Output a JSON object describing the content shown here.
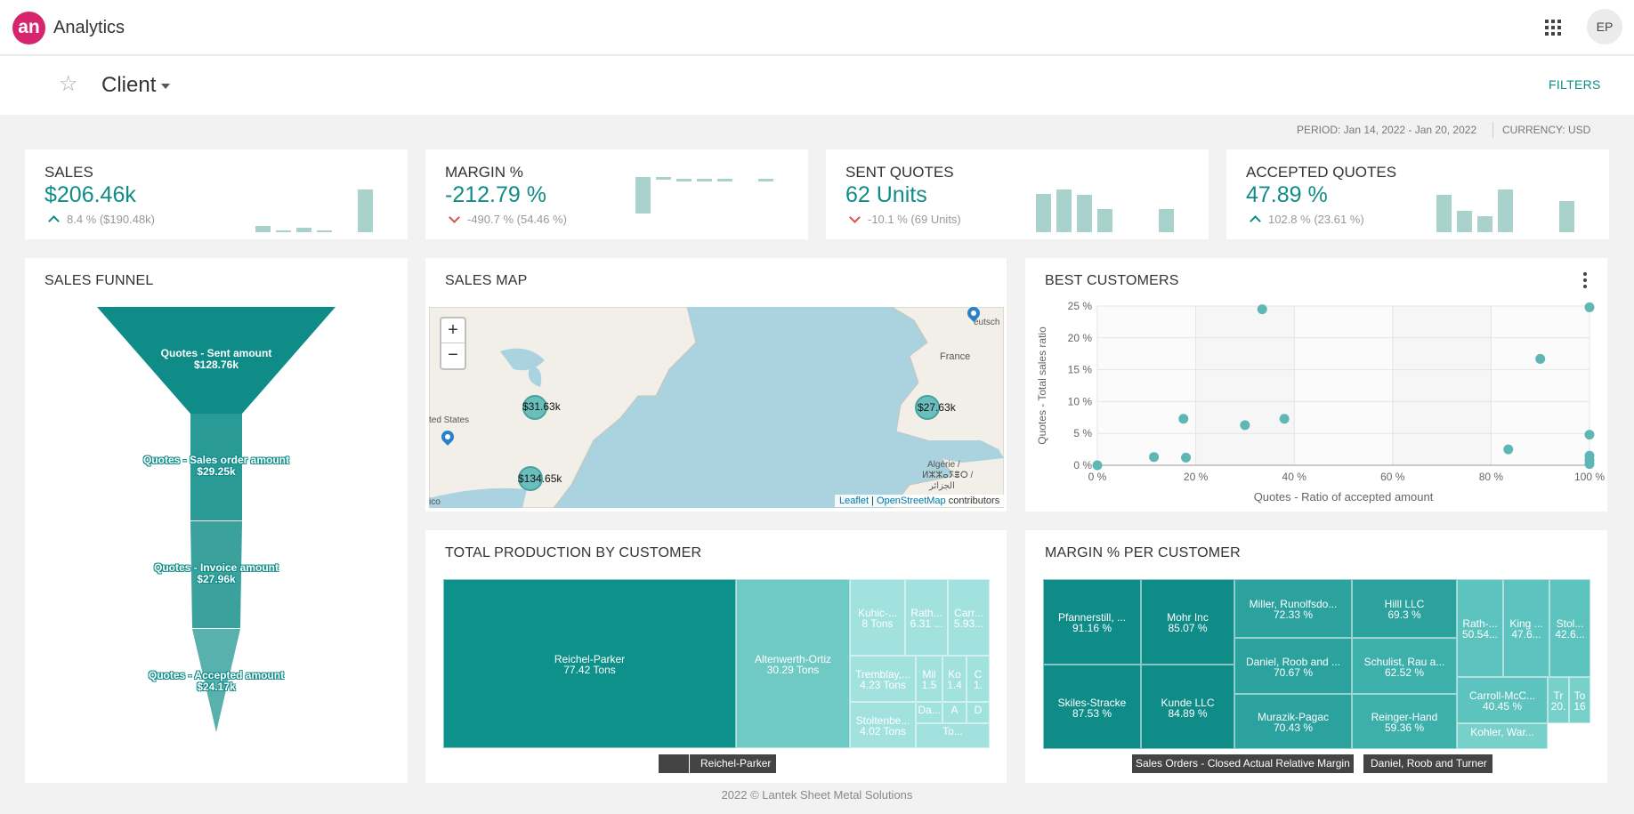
{
  "app": {
    "logo_text": "an",
    "name": "Analytics",
    "user_initials": "EP"
  },
  "subheader": {
    "title": "Client",
    "filters_label": "FILTERS"
  },
  "meta": {
    "period": "PERIOD: Jan 14, 2022 - Jan 20, 2022",
    "currency": "CURRENCY: USD"
  },
  "kpis": [
    {
      "title": "SALES",
      "value": "$206.46k",
      "trend_direction": "up",
      "trend": "8.4 % ($190.48k)",
      "spark_levels": [
        0,
        0.14,
        0.04,
        0.1,
        0.04,
        0,
        1
      ]
    },
    {
      "title": "MARGIN %",
      "value": "-212.79 %",
      "trend_direction": "down",
      "trend": "-490.7 % (54.46 %)",
      "spark_levels": [
        0.9,
        0.1,
        0.05,
        0,
        0,
        0.05
      ]
    },
    {
      "title": "SENT QUOTES",
      "value": "62 Units",
      "trend_direction": "down",
      "trend": "-10.1 % (69 Units)",
      "spark_levels": [
        0.9,
        1,
        0.87,
        0.55,
        0,
        0.55
      ]
    },
    {
      "title": "ACCEPTED QUOTES",
      "value": "47.89 %",
      "trend_direction": "up",
      "trend": "102.8 % (23.61 %)",
      "spark_levels": [
        0.87,
        0.5,
        0.37,
        1,
        0,
        0.72
      ]
    }
  ],
  "funnel": {
    "title": "SALES FUNNEL",
    "stages": [
      {
        "label": "Quotes - Sent amount",
        "value": "$128.76k"
      },
      {
        "label": "Quotes - Sales order amount",
        "value": "$29.25k"
      },
      {
        "label": "Quotes - Invoice amount",
        "value": "$27.96k"
      },
      {
        "label": "Quotes - Accepted amount",
        "value": "$24.17k"
      }
    ]
  },
  "sales_map": {
    "title": "SALES MAP",
    "zoom_in": "+",
    "zoom_out": "−",
    "clusters": [
      "$31.63k",
      "$27.63k",
      "$134.65k"
    ],
    "labels": [
      "France",
      "ted States",
      "eutsch",
      "Algérie /",
      "ⵍⵣⵣⴰⵢⴻⵔ /",
      "الجزائر",
      "ico"
    ],
    "attribution": {
      "leaflet": "Leaflet",
      "sep": " | ",
      "osm": "OpenStreetMap",
      "rest": " contributors"
    }
  },
  "best_customers": {
    "title": "BEST CUSTOMERS",
    "chart_data": {
      "type": "scatter",
      "xlabel": "Quotes - Ratio of accepted amount",
      "ylabel": "Quotes - Total sales ratio",
      "xlim": [
        0,
        100
      ],
      "ylim": [
        0,
        25
      ],
      "xticks": [
        "0 %",
        "20 %",
        "40 %",
        "60 %",
        "80 %",
        "100 %"
      ],
      "yticks": [
        "0 %",
        "5 %",
        "10 %",
        "15 %",
        "20 %",
        "25 %"
      ],
      "points": [
        {
          "x": 0,
          "y": 0
        },
        {
          "x": 11.5,
          "y": 1.3
        },
        {
          "x": 17.5,
          "y": 7.3
        },
        {
          "x": 18,
          "y": 1.2
        },
        {
          "x": 30,
          "y": 6.3
        },
        {
          "x": 33.5,
          "y": 24.5
        },
        {
          "x": 38,
          "y": 7.3
        },
        {
          "x": 83.5,
          "y": 2.5
        },
        {
          "x": 90,
          "y": 16.7
        },
        {
          "x": 100,
          "y": 24.8
        },
        {
          "x": 100,
          "y": 4.8
        },
        {
          "x": 100,
          "y": 1.5
        },
        {
          "x": 100,
          "y": 0.8
        },
        {
          "x": 100,
          "y": 0.2
        }
      ]
    }
  },
  "production": {
    "title": "TOTAL PRODUCTION BY CUSTOMER",
    "cells": [
      {
        "name": "Reichel-Parker",
        "value": "77.42 Tons"
      },
      {
        "name": "Altenwerth-Ortiz",
        "value": "30.29 Tons"
      },
      {
        "name": "Kuhic-...",
        "value": "8 Tons"
      },
      {
        "name": "Rath...",
        "value": "6.31 ..."
      },
      {
        "name": "Carr...",
        "value": "5.93..."
      },
      {
        "name": "Tremblay,...",
        "value": "4.23 Tons"
      },
      {
        "name": "Mil",
        "value": "1.5"
      },
      {
        "name": "Ko",
        "value": "1.4"
      },
      {
        "name": "C",
        "value": "1."
      },
      {
        "name": "Stoltenbe...",
        "value": "4.02 Tons"
      },
      {
        "name": "Da...",
        "value": ""
      },
      {
        "name": "A",
        "value": ""
      },
      {
        "name": "D",
        "value": ""
      },
      {
        "name": "To...",
        "value": ""
      }
    ],
    "breadcrumb": [
      "",
      "Reichel-Parker"
    ]
  },
  "margin": {
    "title": "MARGIN % PER CUSTOMER",
    "cells": [
      {
        "name": "Pfannerstill, ...",
        "value": "91.16 %"
      },
      {
        "name": "Skiles-Stracke",
        "value": "87.53 %"
      },
      {
        "name": "Mohr Inc",
        "value": "85.07 %"
      },
      {
        "name": "Kunde LLC",
        "value": "84.89 %"
      },
      {
        "name": "Miller, Runolfsdo...",
        "value": "72.33 %"
      },
      {
        "name": "Daniel, Roob and ...",
        "value": "70.67 %"
      },
      {
        "name": "Murazik-Pagac",
        "value": "70.43 %"
      },
      {
        "name": "Hilll LLC",
        "value": "69.3 %"
      },
      {
        "name": "Schulist, Rau a...",
        "value": "62.52 %"
      },
      {
        "name": "Reinger-Hand",
        "value": "59.36 %"
      },
      {
        "name": "Rath-...",
        "value": "50.54..."
      },
      {
        "name": "King ...",
        "value": "47.6..."
      },
      {
        "name": "Stol...",
        "value": "42.6..."
      },
      {
        "name": "Carroll-McC...",
        "value": "40.45 %"
      },
      {
        "name": "Tr",
        "value": "20."
      },
      {
        "name": "To",
        "value": "16"
      },
      {
        "name": "Kohler, War...",
        "value": ""
      }
    ],
    "breadcrumb": [
      "Sales Orders - Closed Actual Relative Margin",
      "Daniel, Roob and Turner"
    ]
  },
  "footer": "2022 © Lantek Sheet Metal Solutions",
  "colors": {
    "accent": "#0f8c88",
    "brand": "#d6246e",
    "spark": "#a9d2cd",
    "down": "#d9534f"
  }
}
